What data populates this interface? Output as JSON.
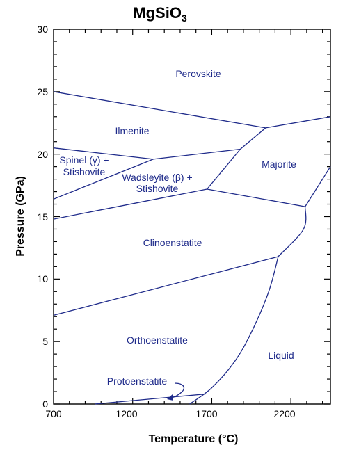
{
  "figure": {
    "title_main": "MgSiO",
    "title_subscript": "3",
    "xlabel": "Temperature (°C)",
    "ylabel": "Pressure (GPa)",
    "x_ticks": [
      "700",
      "1200",
      "1700",
      "2200"
    ],
    "y_ticks": [
      "0",
      "5",
      "10",
      "15",
      "20",
      "25",
      "30"
    ]
  },
  "regions": {
    "perovskite": "Perovskite",
    "ilmenite": "Ilmenite",
    "spinel_line1": "Spinel (γ) +",
    "spinel_line2": "Stishovite",
    "wadsleyite_line1": "Wadsleyite (β) +",
    "wadsleyite_line2": "Stishovite",
    "majorite": "Majorite",
    "clinoenstatite": "Clinoenstatite",
    "orthoenstatite": "Orthoenstatite",
    "protoenstatite": "Protoenstatite",
    "liquid": "Liquid"
  },
  "colors": {
    "boundary": "#1e2a8a",
    "frame": "#000000"
  },
  "chart_data": {
    "type": "phase-diagram",
    "x_range": [
      700,
      2450
    ],
    "y_range": [
      0,
      30
    ],
    "boundaries": [
      {
        "name": "perovskite-ilmenite",
        "points": [
          [
            700,
            25.0
          ],
          [
            2040,
            22.1
          ]
        ]
      },
      {
        "name": "perovskite-majorite",
        "points": [
          [
            2040,
            22.1
          ],
          [
            2450,
            23.0
          ]
        ]
      },
      {
        "name": "ilmenite-majorite",
        "points": [
          [
            2040,
            22.1
          ],
          [
            1880,
            20.4
          ]
        ]
      },
      {
        "name": "ilmenite-spinel",
        "points": [
          [
            700,
            20.5
          ],
          [
            1330,
            19.6
          ]
        ]
      },
      {
        "name": "ilmenite-wadsleyite",
        "points": [
          [
            1330,
            19.6
          ],
          [
            1880,
            20.4
          ]
        ]
      },
      {
        "name": "spinel-wadsleyite",
        "points": [
          [
            700,
            16.4
          ],
          [
            1330,
            19.6
          ]
        ]
      },
      {
        "name": "wadsleyite-majorite",
        "points": [
          [
            1880,
            20.4
          ],
          [
            1670,
            17.2
          ]
        ]
      },
      {
        "name": "wadsleyite-clinoenstatite",
        "points": [
          [
            700,
            14.8
          ],
          [
            1670,
            17.2
          ]
        ]
      },
      {
        "name": "clinoenstatite-majorite",
        "points": [
          [
            1670,
            17.2
          ],
          [
            2290,
            15.8
          ]
        ]
      },
      {
        "name": "majorite-liquid",
        "points": [
          [
            2290,
            15.8
          ],
          [
            2380,
            17.6
          ],
          [
            2450,
            19.0
          ]
        ]
      },
      {
        "name": "clinoenstatite-liquid",
        "points": [
          [
            2290,
            15.8
          ],
          [
            2280,
            14.0
          ],
          [
            2120,
            11.8
          ]
        ]
      },
      {
        "name": "clinoenstatite-orthoenstatite",
        "points": [
          [
            700,
            7.1
          ],
          [
            2120,
            11.8
          ]
        ]
      },
      {
        "name": "orthoenstatite-liquid",
        "points": [
          [
            2120,
            11.8
          ],
          [
            2060,
            9.0
          ],
          [
            1960,
            6.0
          ],
          [
            1850,
            3.5
          ],
          [
            1700,
            1.3
          ],
          [
            1560,
            0.0
          ]
        ]
      },
      {
        "name": "orthoenstatite-protoenstatite",
        "points": [
          [
            960,
            0.0
          ],
          [
            1660,
            0.8
          ]
        ]
      }
    ]
  }
}
